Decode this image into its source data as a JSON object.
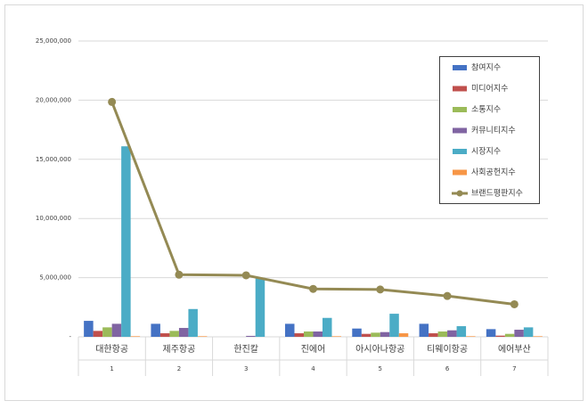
{
  "chart_data": {
    "type": "bar",
    "categories": [
      "대한항공",
      "제주항공",
      "한진칼",
      "진에어",
      "아시아나항공",
      "티웨이항공",
      "에어부산"
    ],
    "category_numbers": [
      "1",
      "2",
      "3",
      "4",
      "5",
      "6",
      "7"
    ],
    "series": [
      {
        "name": "참여지수",
        "color": "#4472c4",
        "values": [
          1350000,
          1100000,
          0,
          1100000,
          700000,
          1100000,
          650000
        ]
      },
      {
        "name": "미디어지수",
        "color": "#c0504d",
        "values": [
          500000,
          300000,
          0,
          300000,
          250000,
          300000,
          100000
        ]
      },
      {
        "name": "소통지수",
        "color": "#9bbb59",
        "values": [
          800000,
          500000,
          0,
          450000,
          350000,
          450000,
          250000
        ]
      },
      {
        "name": "커뮤니티지수",
        "color": "#8064a2",
        "values": [
          1100000,
          750000,
          80000,
          450000,
          400000,
          550000,
          600000
        ]
      },
      {
        "name": "시장지수",
        "color": "#4bacc6",
        "values": [
          16100000,
          2350000,
          5000000,
          1600000,
          1950000,
          900000,
          800000
        ]
      },
      {
        "name": "사회공헌지수",
        "color": "#f79646",
        "values": [
          50000,
          50000,
          0,
          50000,
          300000,
          50000,
          50000
        ]
      },
      {
        "name": "브랜드평판지수",
        "color": "#948a54",
        "type": "line",
        "values": [
          19850000,
          5250000,
          5200000,
          4050000,
          4000000,
          3450000,
          2750000
        ]
      }
    ],
    "ylim": [
      0,
      25000000
    ],
    "yticks": [
      {
        "value": 0,
        "label": "-"
      },
      {
        "value": 5000000,
        "label": "5,000,000"
      },
      {
        "value": 10000000,
        "label": "10,000,000"
      },
      {
        "value": 15000000,
        "label": "15,000,000"
      },
      {
        "value": 20000000,
        "label": "20,000,000"
      },
      {
        "value": 25000000,
        "label": "25,000,000"
      }
    ],
    "grid": true,
    "legend": "top-right"
  }
}
